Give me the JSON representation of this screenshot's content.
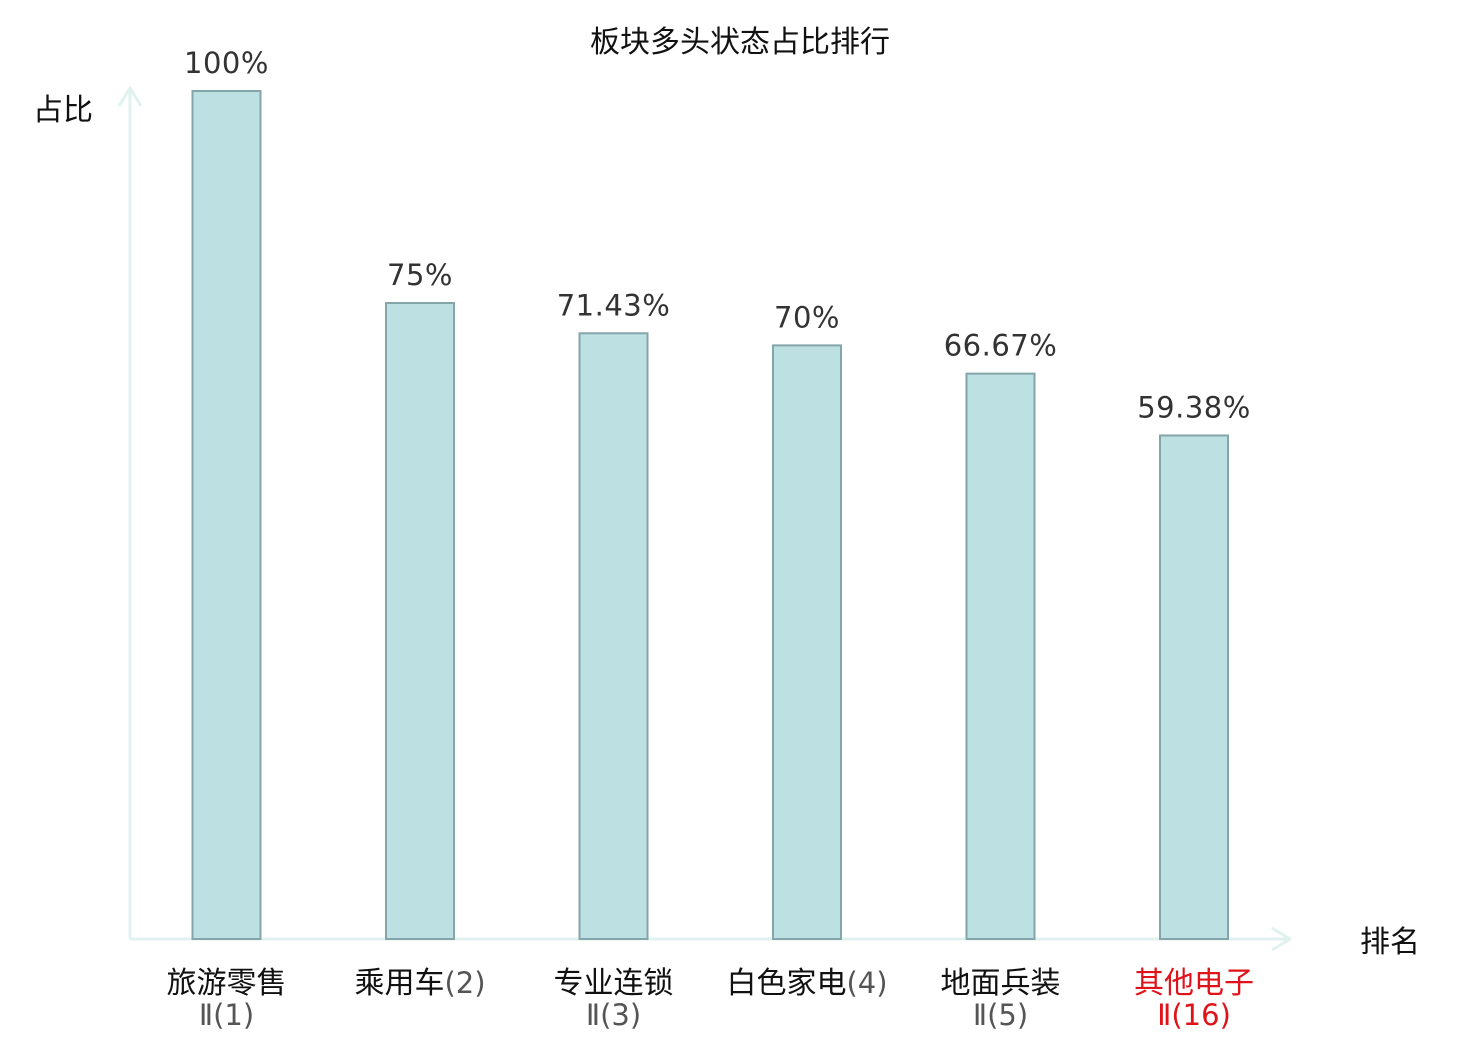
{
  "chart_data": {
    "type": "bar",
    "title": "板块多头状态占比排行",
    "xlabel": "排名",
    "ylabel": "占比",
    "ylim": [
      0,
      100
    ],
    "grid": false,
    "unit": "%",
    "categories": [
      {
        "name": "旅游零售",
        "code": "Ⅱ(1)",
        "wrap": true,
        "highlight": false
      },
      {
        "name": "乘用车",
        "code": "(2)",
        "wrap": false,
        "highlight": false
      },
      {
        "name": "专业连锁",
        "code": "Ⅱ(3)",
        "wrap": true,
        "highlight": false
      },
      {
        "name": "白色家电",
        "code": "(4)",
        "wrap": false,
        "highlight": false
      },
      {
        "name": "地面兵装",
        "code": "Ⅱ(5)",
        "wrap": true,
        "highlight": false
      },
      {
        "name": "其他电子",
        "code": "Ⅱ(16)",
        "wrap": true,
        "highlight": true
      }
    ],
    "values": [
      100,
      75,
      71.43,
      70,
      66.67,
      59.38
    ],
    "value_labels": [
      "100%",
      "75%",
      "71.43%",
      "70%",
      "66.67%",
      "59.38%"
    ]
  },
  "colors": {
    "bar_fill": "#bde0e3",
    "bar_stroke": "#84a5a9",
    "axis": "#e0f2f0",
    "highlight_text": "#e0131b",
    "normal_text": "#111111",
    "code_text": "#555555",
    "value_text": "#333333"
  }
}
